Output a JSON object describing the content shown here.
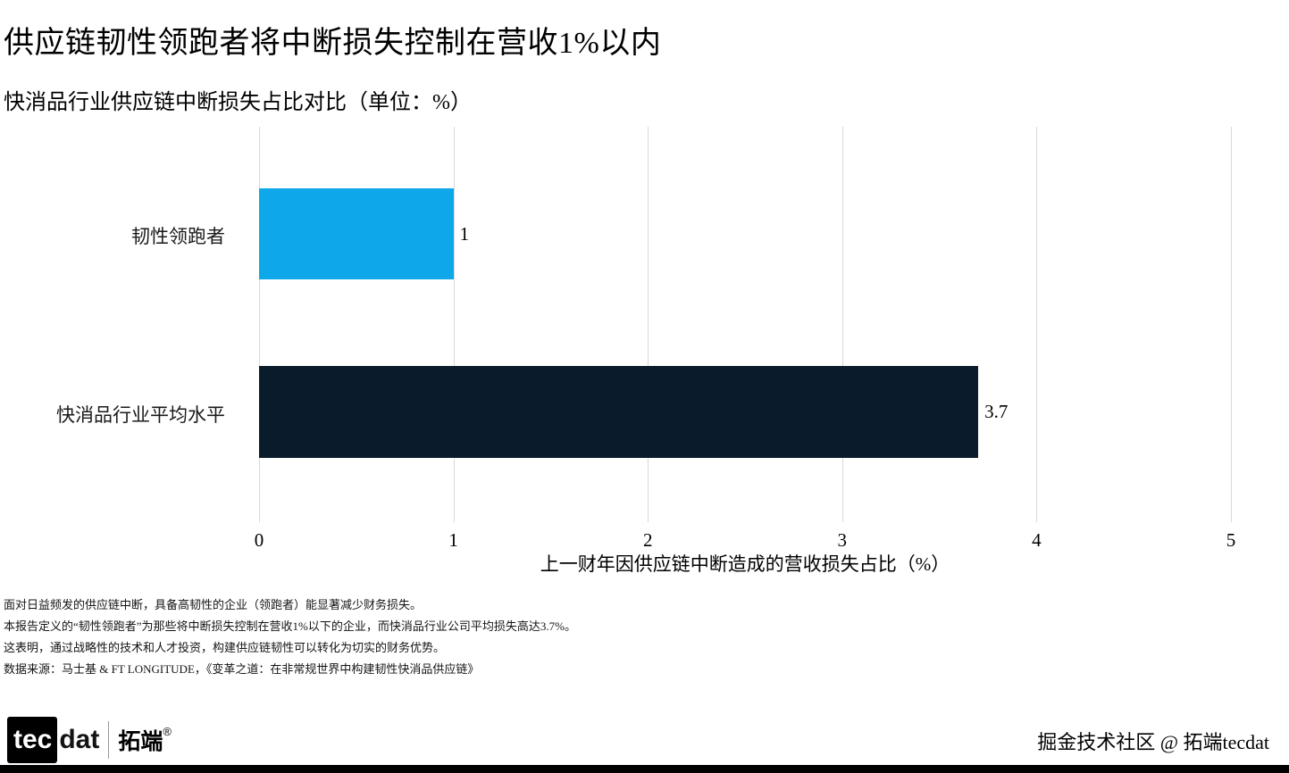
{
  "page": {
    "title": "供应链韧性领跑者将中断损失控制在营收1%以内",
    "subtitle": "快消品行业供应链中断损失占比对比（单位：%）"
  },
  "chart_data": {
    "type": "bar",
    "orientation": "horizontal",
    "title": "供应链韧性领跑者将中断损失控制在营收1%以内",
    "subtitle": "快消品行业供应链中断损失占比对比（单位：%）",
    "categories": [
      "韧性领跑者",
      "快消品行业平均水平"
    ],
    "values": [
      1,
      3.7
    ],
    "value_labels": [
      "1",
      "3.7"
    ],
    "bar_colors": [
      "#0ea7e9",
      "#0a1c2b"
    ],
    "xlabel": "上一财年因供应链中断造成的营收损失占比（%）",
    "ylabel": "",
    "xlim": [
      0,
      5
    ],
    "xticks": [
      "0",
      "1",
      "2",
      "3",
      "4",
      "5"
    ],
    "grid": true,
    "gridline_color": "#d9d9d9",
    "legend": "none"
  },
  "footnotes": [
    "面对日益频发的供应链中断，具备高韧性的企业（领跑者）能显著减少财务损失。",
    "本报告定义的“韧性领跑者”为那些将中断损失控制在营收1%以下的企业，而快消品行业公司平均损失高达3.7%。",
    "这表明，通过战略性的技术和人才投资，构建供应链韧性可以转化为切实的财务优势。",
    "数据来源：马士基 & FT LONGITUDE，《变革之道：在非常规世界中构建韧性快消品供应链》"
  ],
  "footer": {
    "logo_tec": "tec",
    "logo_dat": "dat",
    "logo_cn": "拓端",
    "logo_reg": "®",
    "credit": "掘金技术社区 @ 拓端tecdat"
  }
}
